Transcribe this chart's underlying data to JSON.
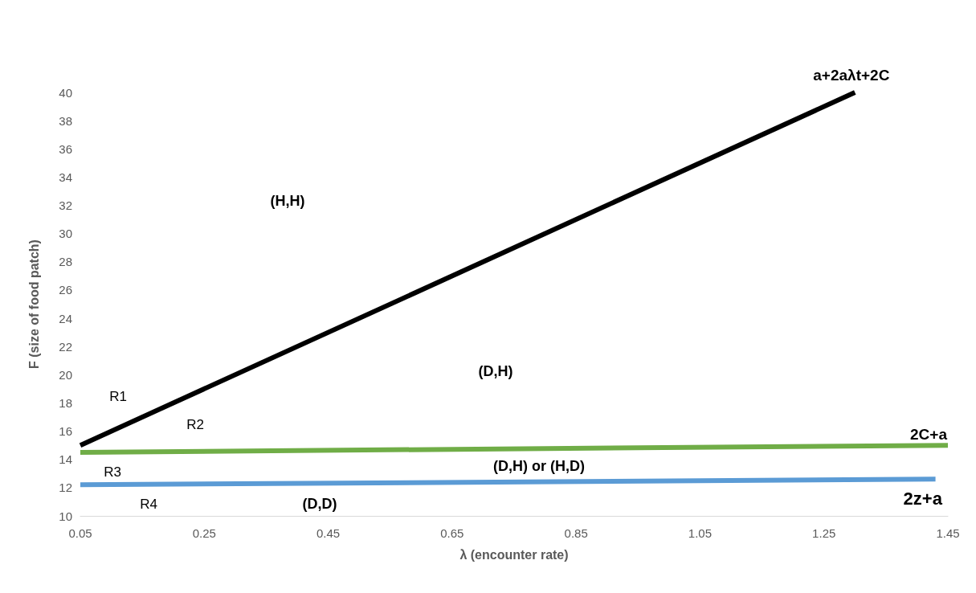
{
  "chart_data": {
    "type": "line",
    "xlabel": "λ (encounter rate)",
    "ylabel": "F (size of food patch)",
    "xlim": [
      0.05,
      1.45
    ],
    "xticks": [
      0.05,
      0.25,
      0.45,
      0.65,
      0.85,
      1.05,
      1.25,
      1.45
    ],
    "ylim": [
      10,
      40
    ],
    "yticks": [
      10,
      12,
      14,
      16,
      18,
      20,
      22,
      24,
      26,
      28,
      30,
      32,
      34,
      36,
      38,
      40
    ],
    "grid": false,
    "marker": "none",
    "line_style": "solid",
    "series": [
      {
        "name": "a+2aλt+2C",
        "color": "#000000",
        "x": [
          0.05,
          1.3
        ],
        "values": [
          15,
          40
        ]
      },
      {
        "name": "2C+a",
        "color": "#70ad47",
        "x": [
          0.05,
          1.45
        ],
        "values": [
          14.5,
          15
        ]
      },
      {
        "name": "2z+a",
        "color": "#5b9bd5",
        "x": [
          0.05,
          1.43
        ],
        "values": [
          12.2,
          12.6
        ]
      }
    ],
    "annotations": [
      "(H,H)",
      "(D,H)",
      "(D,H) or (H,D)",
      "(D,D)",
      "R1",
      "R2",
      "R3",
      "R4"
    ]
  }
}
